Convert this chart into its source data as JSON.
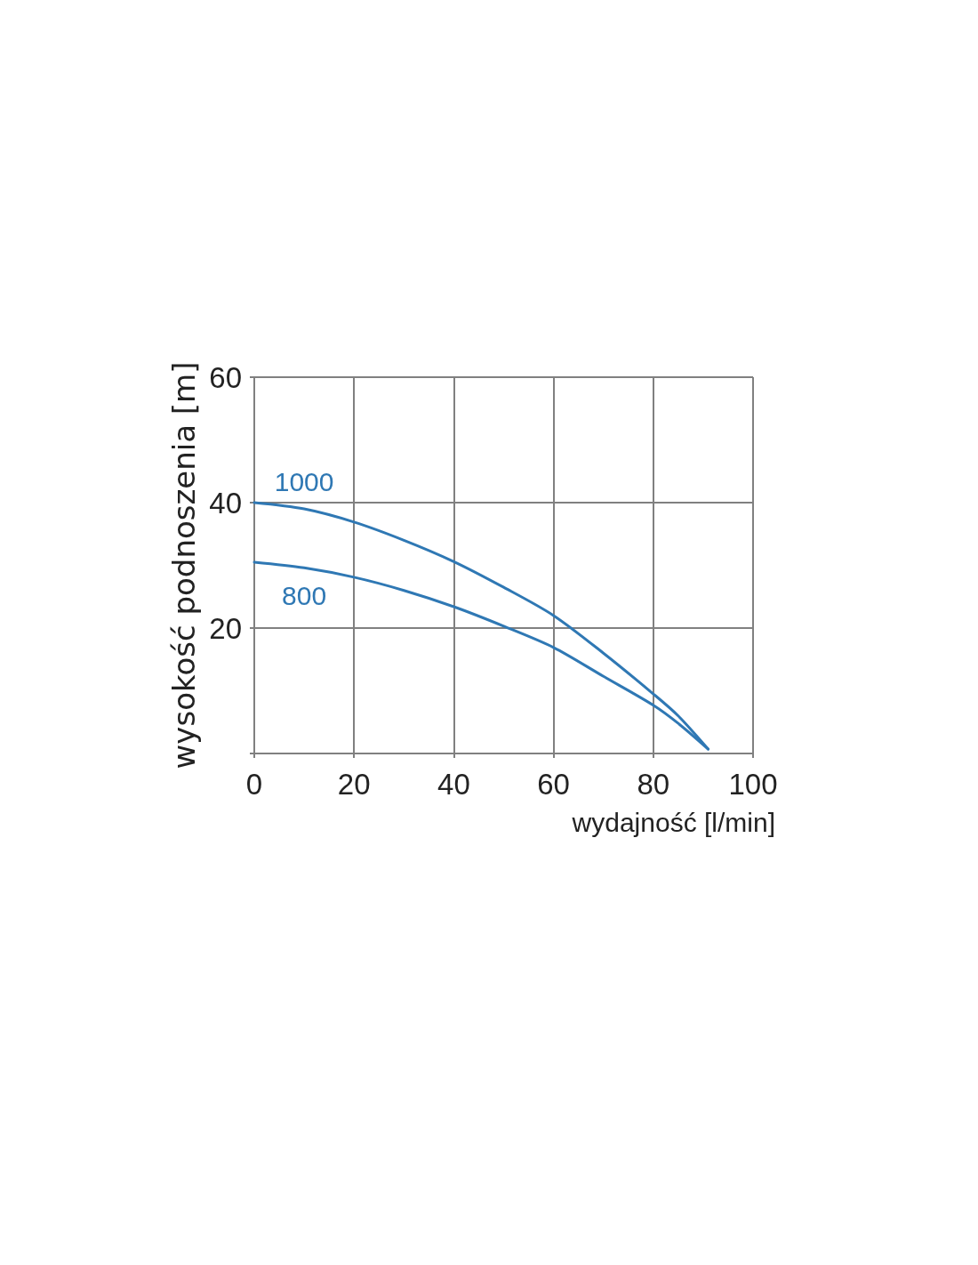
{
  "chart_data": {
    "type": "line",
    "xlabel": "wydajność [l/min]",
    "ylabel": "wysokość podnoszenia [m]",
    "xlim": [
      0,
      100
    ],
    "xticks": [
      0,
      20,
      40,
      60,
      80,
      100
    ],
    "ylim": [
      0,
      60
    ],
    "yticks": [
      {
        "value": 0,
        "label": null
      },
      20,
      40,
      60
    ],
    "grid": true,
    "x": [
      0,
      10,
      20,
      30,
      40,
      50,
      60,
      70,
      80,
      85,
      91
    ],
    "series": [
      {
        "name": "1000",
        "color": "#2f78b4",
        "values": [
          40,
          39,
          36.9,
          34,
          30.6,
          26.5,
          22,
          16,
          9.5,
          6,
          0.7
        ]
      },
      {
        "name": "800",
        "color": "#2f78b4",
        "values": [
          30.5,
          29.6,
          28.1,
          26,
          23.4,
          20.3,
          16.9,
          12.3,
          7.7,
          4.8,
          0.7
        ]
      }
    ]
  }
}
